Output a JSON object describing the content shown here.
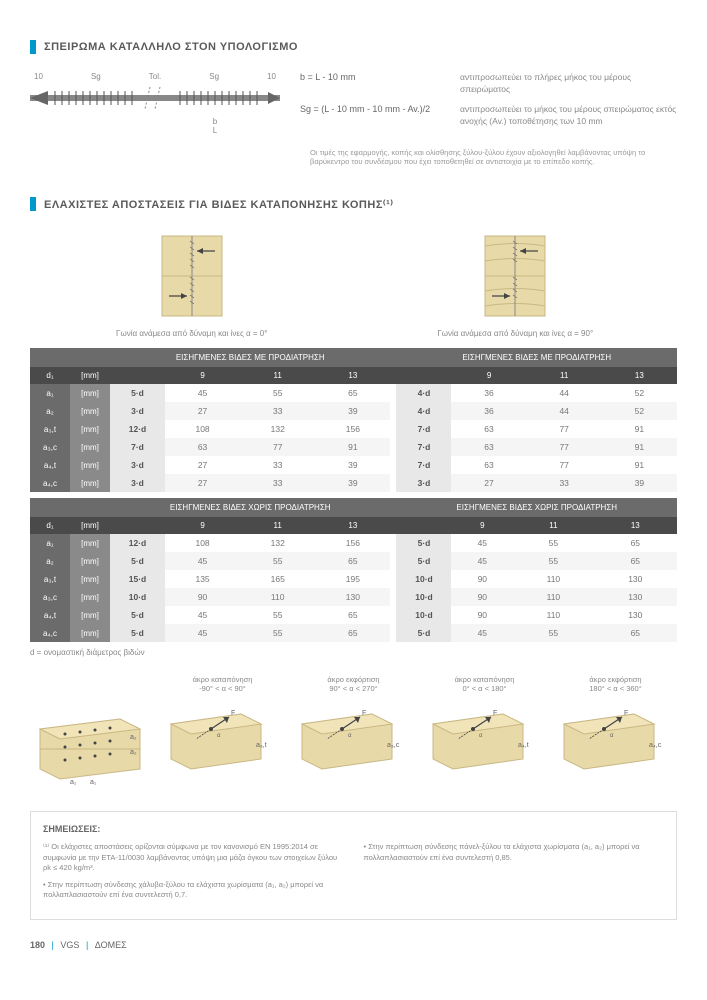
{
  "section1": {
    "title": "ΣΠΕΙΡΩΜΑ ΚΑΤΑΛΛΗΛΟ ΣΤΟΝ ΥΠΟΛΟΓΙΣΜΟ",
    "screw_labels": {
      "l1": "10",
      "l2": "Sg",
      "l3": "Tol.",
      "l4": "Sg",
      "l5": "10"
    },
    "screw_below": {
      "b": "b",
      "L": "L"
    },
    "formula1": {
      "lhs": "b  = L - 10 mm",
      "rhs": "αντιπροσωπεύει το πλήρες μήκος του μέρους σπειρώματος"
    },
    "formula2": {
      "lhs": "Sg = (L - 10 mm - 10 mm - Av.)/2",
      "rhs": "αντιπροσωπεύει το μήκος του μέρους σπειρώματος εκτός ανοχής (Av.) τοποθέτησης των 10 mm"
    },
    "footnote": "Οι τιμές της εφαρμογής, κοπής και ολίσθησης ξύλου-ξύλου έχουν αξιολογηθεί λαμβάνοντας υπόψη το βαρύκεντρο του συνδέσμου που έχει τοποθετηθεί σε αντιστοιχία με το επίπεδο κοπής."
  },
  "section2": {
    "title": "ΕΛΑΧΙΣΤΕΣ ΑΠΟΣΤΑΣΕΙΣ ΓΙΑ ΒΙΔΕΣ ΚΑΤΑΠΟΝΗΣΗΣ ΚΟΠΗΣ⁽¹⁾",
    "caption_left": "Γωνία ανάμεσα από δύναμη και ίνες α = 0°",
    "caption_right": "Γωνία ανάμεσα από δύναμη και ίνες α = 90°",
    "wood_color": "#e8d9a8",
    "wood_grain": "#c9b884"
  },
  "table1": {
    "header_left": "ΕΙΣΗΓΜΕΝΕΣ ΒΙΔΕΣ ΜΕ ΠΡΟΔΙΑΤΡΗΣΗ",
    "header_right": "ΕΙΣΗΓΜΕΝΕΣ ΒΙΔΕΣ ΜΕ ΠΡΟΔΙΑΤΡΗΣΗ",
    "d_label": "d₁",
    "unit": "[mm]",
    "cols_left": [
      "9",
      "11",
      "13"
    ],
    "cols_right": [
      "9",
      "11",
      "13"
    ],
    "rows": [
      {
        "label": "a₁",
        "unit": "[mm]",
        "mult_l": "5·d",
        "vals_l": [
          "45",
          "55",
          "65"
        ],
        "mult_r": "4·d",
        "vals_r": [
          "36",
          "44",
          "52"
        ]
      },
      {
        "label": "a₂",
        "unit": "[mm]",
        "mult_l": "3·d",
        "vals_l": [
          "27",
          "33",
          "39"
        ],
        "mult_r": "4·d",
        "vals_r": [
          "36",
          "44",
          "52"
        ]
      },
      {
        "label": "a₃,t",
        "unit": "[mm]",
        "mult_l": "12·d",
        "vals_l": [
          "108",
          "132",
          "156"
        ],
        "mult_r": "7·d",
        "vals_r": [
          "63",
          "77",
          "91"
        ]
      },
      {
        "label": "a₃,c",
        "unit": "[mm]",
        "mult_l": "7·d",
        "vals_l": [
          "63",
          "77",
          "91"
        ],
        "mult_r": "7·d",
        "vals_r": [
          "63",
          "77",
          "91"
        ]
      },
      {
        "label": "a₄,t",
        "unit": "[mm]",
        "mult_l": "3·d",
        "vals_l": [
          "27",
          "33",
          "39"
        ],
        "mult_r": "7·d",
        "vals_r": [
          "63",
          "77",
          "91"
        ]
      },
      {
        "label": "a₄,c",
        "unit": "[mm]",
        "mult_l": "3·d",
        "vals_l": [
          "27",
          "33",
          "39"
        ],
        "mult_r": "3·d",
        "vals_r": [
          "27",
          "33",
          "39"
        ]
      }
    ]
  },
  "table2": {
    "header_left": "ΕΙΣΗΓΜΕΝΕΣ ΒΙΔΕΣ ΧΩΡΙΣ ΠΡΟΔΙΑΤΡΗΣΗ",
    "header_right": "ΕΙΣΗΓΜΕΝΕΣ ΒΙΔΕΣ ΧΩΡΙΣ ΠΡΟΔΙΑΤΡΗΣΗ",
    "d_label": "d₁",
    "unit": "[mm]",
    "cols_left": [
      "9",
      "11",
      "13"
    ],
    "cols_right": [
      "9",
      "11",
      "13"
    ],
    "rows": [
      {
        "label": "a₁",
        "unit": "[mm]",
        "mult_l": "12·d",
        "vals_l": [
          "108",
          "132",
          "156"
        ],
        "mult_r": "5·d",
        "vals_r": [
          "45",
          "55",
          "65"
        ]
      },
      {
        "label": "a₂",
        "unit": "[mm]",
        "mult_l": "5·d",
        "vals_l": [
          "45",
          "55",
          "65"
        ],
        "mult_r": "5·d",
        "vals_r": [
          "45",
          "55",
          "65"
        ]
      },
      {
        "label": "a₃,t",
        "unit": "[mm]",
        "mult_l": "15·d",
        "vals_l": [
          "135",
          "165",
          "195"
        ],
        "mult_r": "10·d",
        "vals_r": [
          "90",
          "110",
          "130"
        ]
      },
      {
        "label": "a₃,c",
        "unit": "[mm]",
        "mult_l": "10·d",
        "vals_l": [
          "90",
          "110",
          "130"
        ],
        "mult_r": "10·d",
        "vals_r": [
          "90",
          "110",
          "130"
        ]
      },
      {
        "label": "a₄,t",
        "unit": "[mm]",
        "mult_l": "5·d",
        "vals_l": [
          "45",
          "55",
          "65"
        ],
        "mult_r": "10·d",
        "vals_r": [
          "90",
          "110",
          "130"
        ]
      },
      {
        "label": "a₄,c",
        "unit": "[mm]",
        "mult_l": "5·d",
        "vals_l": [
          "45",
          "55",
          "65"
        ],
        "mult_r": "5·d",
        "vals_r": [
          "45",
          "55",
          "65"
        ]
      }
    ]
  },
  "table_note": "d = ονομαστική διάμετρος βιδών",
  "spacing_diagrams": {
    "items": [
      {
        "caption": "",
        "labels": [
          "a₂",
          "a₂",
          "a₁",
          "a₁"
        ]
      },
      {
        "caption": "άκρο καταπόνηση\n-90° < α < 90°",
        "labels": [
          "a₃,t"
        ]
      },
      {
        "caption": "άκρο εκφόρτιση\n90° < α < 270°",
        "labels": [
          "a₃,c"
        ]
      },
      {
        "caption": "άκρο καταπόνηση\n0° < α < 180°",
        "labels": [
          "a₄,t"
        ]
      },
      {
        "caption": "άκρο εκφόρτιση\n180° < α < 360°",
        "labels": [
          "a₄,c"
        ]
      }
    ],
    "wood_fill": "#e8d9a8",
    "wood_stroke": "#c9b884"
  },
  "notes": {
    "title": "ΣΗΜΕΙΩΣΕΙΣ:",
    "col1": [
      "⁽¹⁾ Οι ελάχιστες αποστάσεις ορίζονται σύμφωνα με τον κανονισμό EN 1995:2014 σε συμφωνία με την ETA-11/0030 λαμβάνοντας υπόψη μια μάζα όγκου των στοιχείων ξύλου ρk ≤ 420 kg/m³.",
      "• Στην περίπτωση σύνδεσης χάλυβα-ξύλου τα ελάχιστα χωρίσματα (a₁, a₂) μπορεί να πολλαπλασιαστούν επί ένα συντελεστή 0,7."
    ],
    "col2": [
      "• Στην περίπτωση σύνδεσης πάνελ-ξύλου τα ελάχιστα χωρίσματα (a₁, a₂) μπορεί να πολλαπλασιαστούν επί ένα συντελεστή 0,85."
    ]
  },
  "footer": {
    "page": "180",
    "brand": "VGS",
    "section": "ΔΟΜΕΣ"
  }
}
